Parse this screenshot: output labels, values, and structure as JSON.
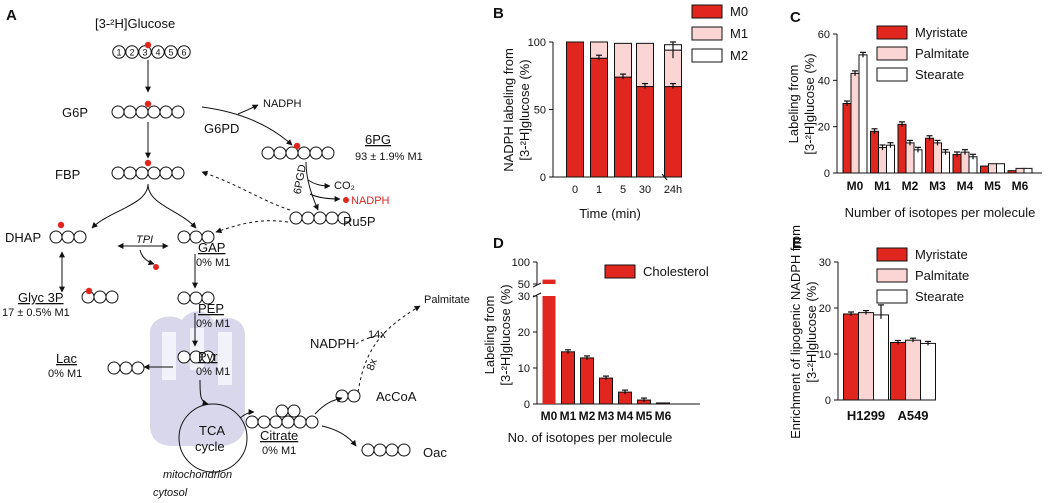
{
  "panels": {
    "a": "A",
    "b": "B",
    "c": "C",
    "d": "D",
    "e": "E"
  },
  "pathway": {
    "glucose": "[3-²H]Glucose",
    "carbons": [
      "1",
      "2",
      "3",
      "4",
      "5",
      "6"
    ],
    "g6p": "G6P",
    "fbp": "FBP",
    "dhap": "DHAP",
    "gap": "GAP",
    "gap_note": "0% M1",
    "tpi": "TPI",
    "glyc3p": "Glyc 3P",
    "glyc3p_note": "17 ± 0.5% M1",
    "pep": "PEP",
    "pep_note": "0% M1",
    "pyr": "Pyr",
    "pyr_note": "0% M1",
    "lac": "Lac",
    "lac_note": "0% M1",
    "nadph_top": "NADPH",
    "g6pd": "G6PD",
    "sixpg": "6PG",
    "sixpg_note": "93 ± 1.9% M1",
    "sixpgd": "6PGD",
    "co2": "CO₂",
    "nadph_red": "NADPH",
    "ru5p": "Ru5P",
    "nadph_mid": "NADPH",
    "fourteen": "14x",
    "eight": "8x",
    "palmitate": "Palmitate",
    "accoa": "AcCoA",
    "tca1": "TCA",
    "tca2": "cycle",
    "citrate": "Citrate",
    "citrate_note": "0% M1",
    "oac": "Oac",
    "mito": "mitochondrion",
    "cytosol": "cytosol"
  },
  "chart_data": [
    {
      "id": "B",
      "type": "bar",
      "stacked": true,
      "categories": [
        "0",
        "1",
        "5",
        "30",
        "24h"
      ],
      "series": [
        {
          "name": "M0",
          "color": "#e0261f",
          "values": [
            100,
            88,
            74,
            67,
            67
          ]
        },
        {
          "name": "M1",
          "color": "#fbd4d4",
          "values": [
            0,
            12,
            25,
            32,
            27
          ]
        },
        {
          "name": "M2",
          "color": "#ffffff",
          "values": [
            0,
            0,
            0,
            0,
            4
          ]
        }
      ],
      "xlabel": "Time (min)",
      "ylabel": "NADPH labeling from [3-²H]glucose (%)",
      "ylim": [
        0,
        100
      ],
      "yticks": [
        "0",
        "50",
        "100"
      ],
      "legend": "top-right"
    },
    {
      "id": "C",
      "type": "bar",
      "categories": [
        "M0",
        "M1",
        "M2",
        "M3",
        "M4",
        "M5",
        "M6"
      ],
      "series": [
        {
          "name": "Myristate",
          "color": "#e0261f",
          "values": [
            30,
            18,
            21,
            15,
            8,
            3,
            1
          ]
        },
        {
          "name": "Palmitate",
          "color": "#fbd4d4",
          "values": [
            43,
            11,
            13,
            13,
            9,
            4,
            2
          ]
        },
        {
          "name": "Stearate",
          "color": "#ffffff",
          "values": [
            51,
            12,
            10,
            9,
            7,
            4,
            2
          ]
        }
      ],
      "xlabel": "Number of isotopes per molecule",
      "ylabel": "Labeling from [3-²H]glucose (%)",
      "ylim": [
        0,
        60
      ],
      "yticks": [
        "0",
        "20",
        "40",
        "60"
      ],
      "legend": "top-right"
    },
    {
      "id": "D",
      "type": "bar",
      "categories": [
        "M0",
        "M1",
        "M2",
        "M3",
        "M4",
        "M5",
        "M6"
      ],
      "series": [
        {
          "name": "Cholesterol",
          "color": "#e0261f",
          "values": [
            60,
            14.5,
            12.8,
            7.2,
            3.3,
            1.1,
            0.3
          ]
        }
      ],
      "xlabel": "No. of isotopes per molecule",
      "ylabel": "Labeling from [3-²H]glucose (%)",
      "ylim": [
        0,
        100
      ],
      "yticks": [
        "0",
        "10",
        "20",
        "30",
        "50",
        "100"
      ],
      "legend": "top-right"
    },
    {
      "id": "E",
      "type": "bar",
      "categories": [
        "H1299",
        "A549"
      ],
      "series": [
        {
          "name": "Myristate",
          "color": "#e0261f",
          "values": [
            18.7,
            12.5
          ]
        },
        {
          "name": "Palmitate",
          "color": "#fbd4d4",
          "values": [
            19.0,
            13.0
          ]
        },
        {
          "name": "Stearate",
          "color": "#ffffff",
          "values": [
            18.5,
            12.3
          ]
        }
      ],
      "xlabel": "",
      "ylabel": "Enrichment of lipogenic NADPH from [3-²H]glucose (%)",
      "ylim": [
        0,
        30
      ],
      "yticks": [
        "0",
        "10",
        "20",
        "30"
      ],
      "legend": "top-right"
    }
  ]
}
